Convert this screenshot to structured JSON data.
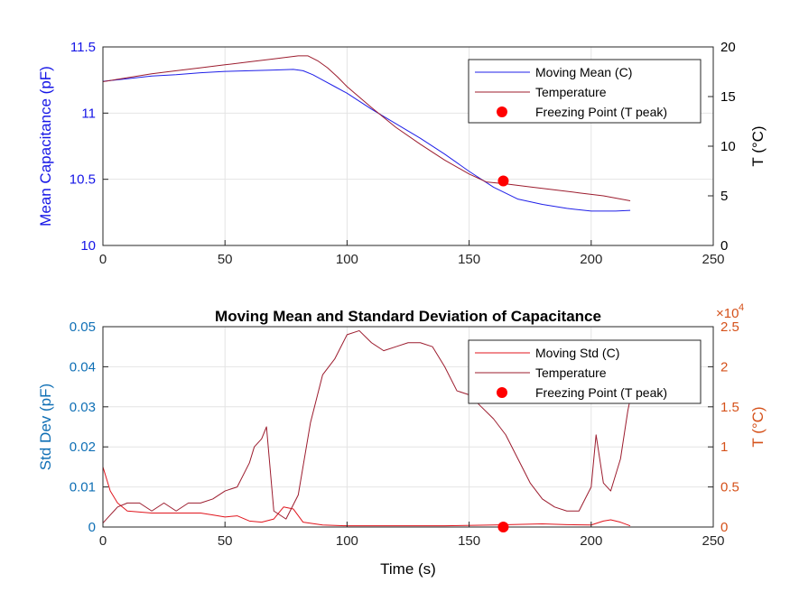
{
  "colors": {
    "mean_line": "#1f1fe8",
    "temp_line": "#9c1c2e",
    "std_line": "#e0151d",
    "freeze_point": "#ff0000",
    "axis_blue": "#1515e6",
    "axis_std_blue": "#0f6fb5",
    "axis_orange": "#d5511a",
    "grid": "#e4e4e4"
  },
  "chart_data": [
    {
      "type": "line",
      "title": "",
      "xlabel": "",
      "ylabel": "Mean Capacitance (pF)",
      "y2label": "T (°C)",
      "xlim": [
        0,
        250
      ],
      "ylim": [
        10,
        11.5
      ],
      "y2lim": [
        0,
        20
      ],
      "xticks": [
        "0",
        "50",
        "100",
        "150",
        "200",
        "250"
      ],
      "yticks": [
        "10",
        "10.5",
        "11",
        "11.5"
      ],
      "y2ticks": [
        "0",
        "5",
        "10",
        "15",
        "20"
      ],
      "grid": true,
      "legend_position": "top-right",
      "legend": [
        "Moving Mean (C)",
        "Temperature",
        "Freezing Point (T peak)"
      ],
      "series": [
        {
          "name": "Moving Mean (C)",
          "axis": "left",
          "x": [
            0,
            10,
            20,
            30,
            40,
            50,
            60,
            70,
            78,
            82,
            86,
            90,
            95,
            100,
            110,
            120,
            130,
            140,
            150,
            160,
            170,
            180,
            190,
            200,
            210,
            216
          ],
          "y": [
            11.24,
            11.26,
            11.28,
            11.29,
            11.305,
            11.315,
            11.32,
            11.325,
            11.33,
            11.32,
            11.29,
            11.25,
            11.2,
            11.15,
            11.03,
            10.92,
            10.81,
            10.69,
            10.56,
            10.44,
            10.35,
            10.31,
            10.28,
            10.26,
            10.26,
            10.265
          ]
        },
        {
          "name": "Temperature",
          "axis": "right",
          "x": [
            0,
            10,
            20,
            30,
            40,
            50,
            60,
            70,
            80,
            84,
            88,
            92,
            96,
            100,
            110,
            120,
            130,
            140,
            150,
            157,
            165,
            175,
            185,
            195,
            205,
            216
          ],
          "y": [
            16.5,
            16.9,
            17.3,
            17.6,
            17.9,
            18.2,
            18.5,
            18.8,
            19.1,
            19.1,
            18.6,
            17.9,
            17.0,
            16.0,
            13.9,
            11.9,
            10.2,
            8.6,
            7.2,
            6.4,
            6.2,
            5.9,
            5.6,
            5.3,
            5.0,
            4.5
          ]
        }
      ],
      "points": [
        {
          "name": "Freezing Point (T peak)",
          "axis": "right",
          "x": 164,
          "y": 6.5
        }
      ]
    },
    {
      "type": "line",
      "title": "Moving Mean and Standard Deviation of Capacitance",
      "xlabel": "Time (s)",
      "ylabel": "Std Dev (pF)",
      "y2label": "T (°C)",
      "y2_multiplier": "×10^4",
      "xlim": [
        0,
        250
      ],
      "ylim": [
        0,
        0.05
      ],
      "y2lim": [
        0,
        2.5
      ],
      "xticks": [
        "0",
        "50",
        "100",
        "150",
        "200",
        "250"
      ],
      "yticks": [
        "0",
        "0.01",
        "0.02",
        "0.03",
        "0.04",
        "0.05"
      ],
      "y2ticks": [
        "0",
        "0.5",
        "1",
        "1.5",
        "2",
        "2.5"
      ],
      "grid": true,
      "legend_position": "top-right",
      "legend": [
        "Moving Std (C)",
        "Temperature",
        "Freezing Point (T peak)"
      ],
      "series": [
        {
          "name": "Moving Std (C)",
          "axis": "left",
          "x": [
            0,
            3,
            6,
            10,
            20,
            30,
            40,
            45,
            50,
            55,
            60,
            65,
            70,
            74,
            78,
            82,
            90,
            100,
            120,
            140,
            160,
            180,
            190,
            200,
            205,
            208,
            212,
            216
          ],
          "y": [
            0.015,
            0.009,
            0.006,
            0.004,
            0.0035,
            0.0035,
            0.0035,
            0.003,
            0.0025,
            0.0028,
            0.0015,
            0.0012,
            0.002,
            0.005,
            0.0045,
            0.0012,
            0.0005,
            0.0003,
            0.0003,
            0.0003,
            0.0005,
            0.0008,
            0.0006,
            0.0005,
            0.0015,
            0.0018,
            0.0012,
            0.0003
          ]
        },
        {
          "name": "Temperature",
          "axis": "right",
          "x": [
            0,
            3,
            6,
            10,
            15,
            20,
            25,
            30,
            35,
            40,
            45,
            50,
            55,
            60,
            62,
            65,
            67,
            70,
            75,
            80,
            85,
            90,
            95,
            100,
            105,
            110,
            115,
            120,
            125,
            130,
            135,
            140,
            145,
            150,
            155,
            160,
            165,
            170,
            175,
            180,
            185,
            190,
            195,
            200,
            202,
            205,
            208,
            212,
            215,
            216
          ],
          "y": [
            0.05,
            0.15,
            0.25,
            0.3,
            0.3,
            0.2,
            0.3,
            0.2,
            0.3,
            0.3,
            0.35,
            0.45,
            0.5,
            0.8,
            1.0,
            1.1,
            1.25,
            0.2,
            0.1,
            0.4,
            1.3,
            1.9,
            2.1,
            2.4,
            2.45,
            2.3,
            2.2,
            2.25,
            2.3,
            2.3,
            2.25,
            2.0,
            1.7,
            1.65,
            1.5,
            1.35,
            1.15,
            0.85,
            0.55,
            0.35,
            0.25,
            0.2,
            0.2,
            0.5,
            1.15,
            0.55,
            0.45,
            0.85,
            1.45,
            1.6
          ]
        }
      ],
      "points": [
        {
          "name": "Freezing Point (T peak)",
          "axis": "left",
          "x": 164,
          "y": 0
        }
      ]
    }
  ]
}
